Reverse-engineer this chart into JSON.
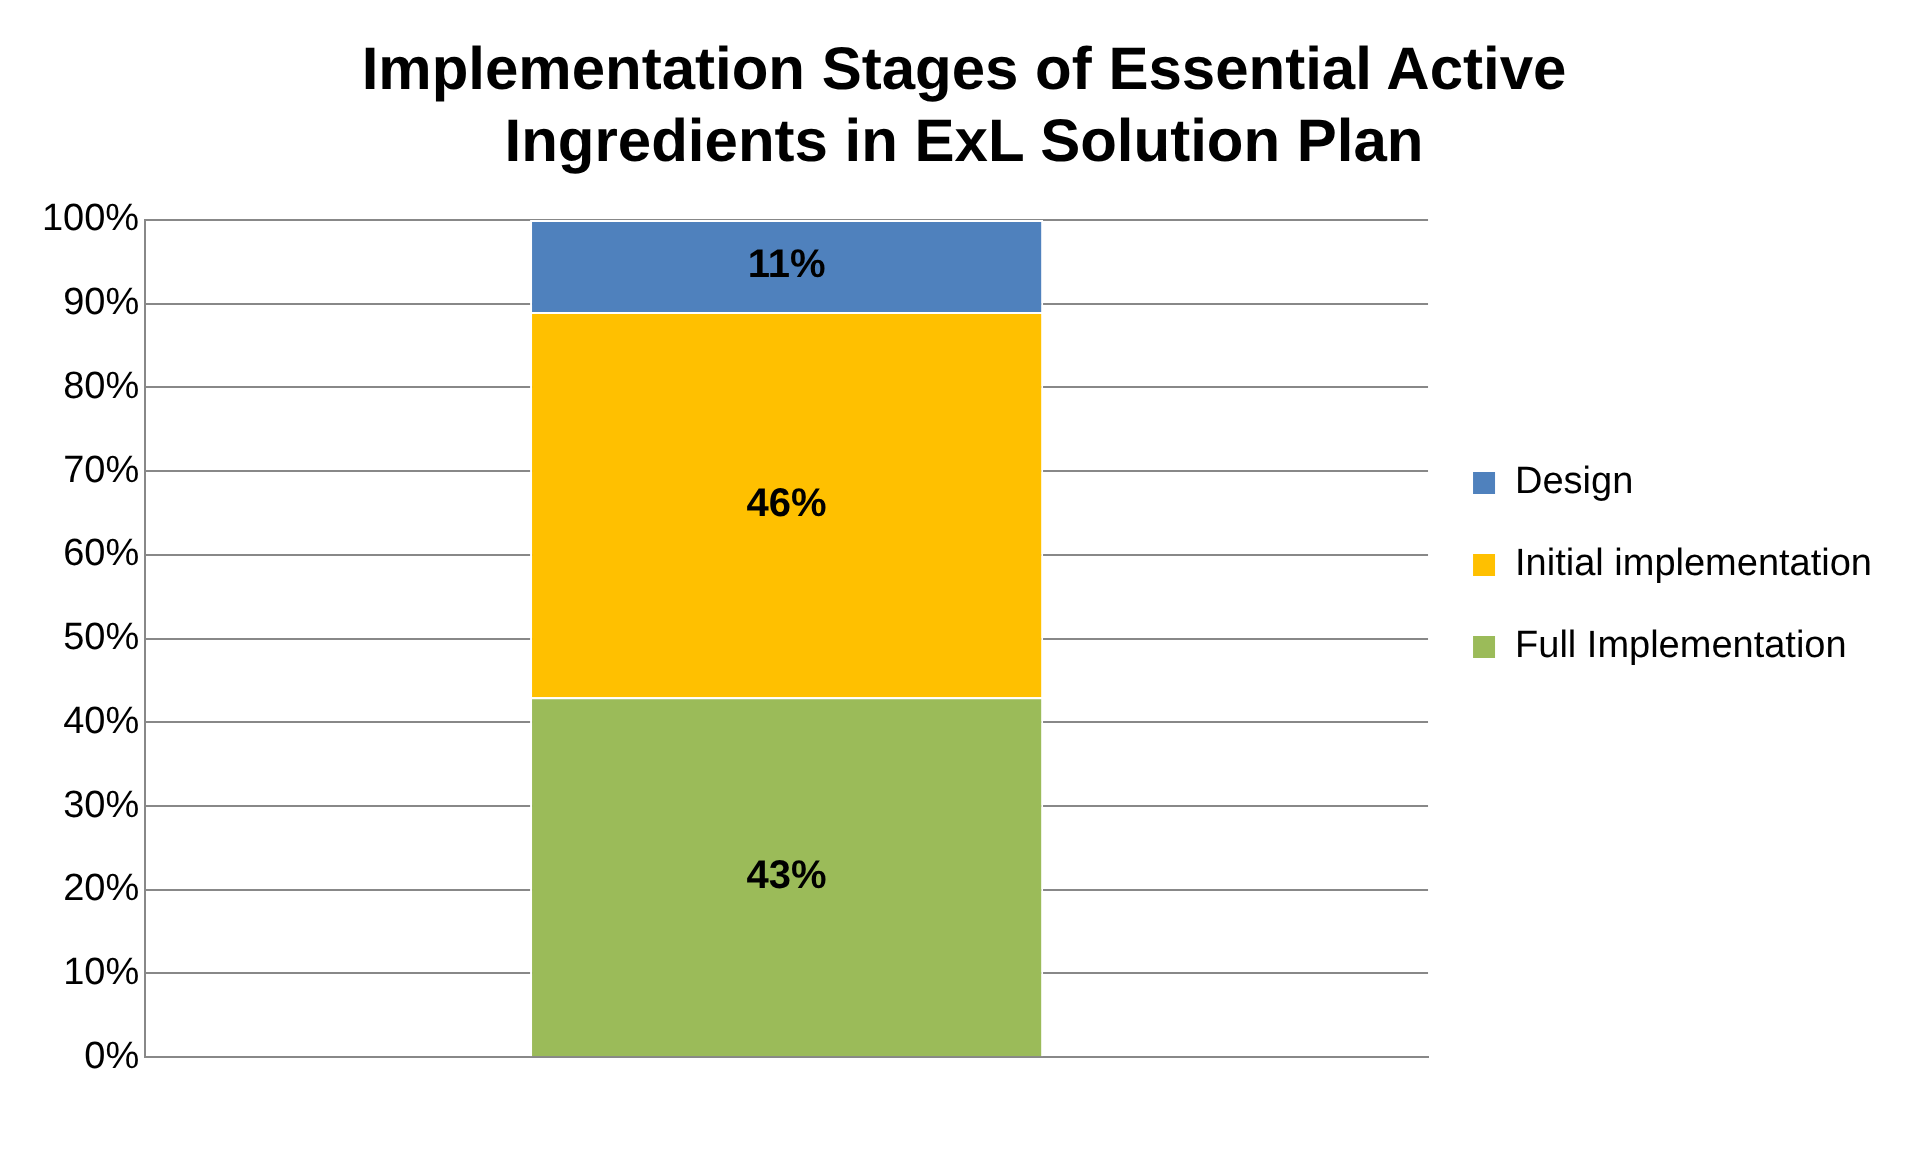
{
  "chart_data": {
    "type": "bar",
    "title": "Implementation Stages of Essential Active Ingredients in ExL Solution Plan",
    "categories": [
      null
    ],
    "stacked": true,
    "series": [
      {
        "name": "Full Implementation",
        "color": "#9bbb59",
        "values": [
          43
        ],
        "value_labels": [
          "43%"
        ]
      },
      {
        "name": "Initial implementation",
        "color": "#ffc000",
        "values": [
          46
        ],
        "value_labels": [
          "46%"
        ]
      },
      {
        "name": "Design",
        "color": "#4f81bd",
        "values": [
          11
        ],
        "value_labels": [
          "11%"
        ]
      }
    ],
    "ylim": [
      0,
      100
    ],
    "yticks": [
      {
        "value": 0,
        "label": "0%"
      },
      {
        "value": 10,
        "label": "10%"
      },
      {
        "value": 20,
        "label": "20%"
      },
      {
        "value": 30,
        "label": "30%"
      },
      {
        "value": 40,
        "label": "40%"
      },
      {
        "value": 50,
        "label": "50%"
      },
      {
        "value": 60,
        "label": "60%"
      },
      {
        "value": 70,
        "label": "70%"
      },
      {
        "value": 80,
        "label": "80%"
      },
      {
        "value": 90,
        "label": "90%"
      },
      {
        "value": 100,
        "label": "100%"
      }
    ],
    "grid": "y",
    "legend": "right"
  }
}
